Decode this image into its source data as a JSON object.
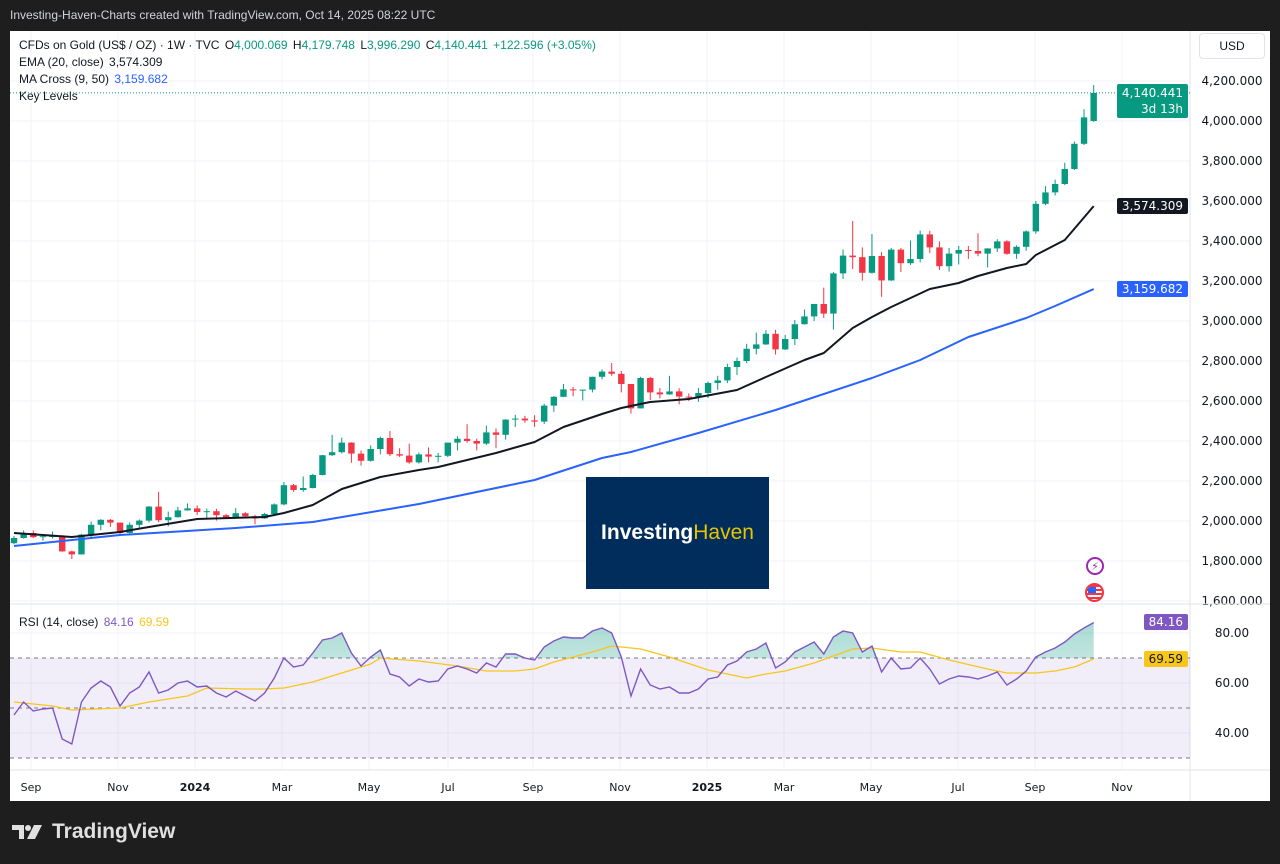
{
  "header": {
    "title": "Investing-Haven-Charts created with TradingView.com, Oct 14, 2025 08:22 UTC"
  },
  "legend": {
    "symbol": "CFDs on Gold (US$ / OZ) · 1W · TVC",
    "open_label": "O",
    "open": "4,000.069",
    "high_label": "H",
    "high": "4,179.748",
    "low_label": "L",
    "low": "3,996.290",
    "close_label": "C",
    "close": "4,140.441",
    "change": "+122.596 (+3.05%)",
    "ema_label": "EMA (20, close)",
    "ema_value": "3,574.309",
    "ma_label": "MA Cross (9, 50)",
    "ma_value": "3,159.682",
    "key_levels": "Key Levels",
    "rsi_label": "RSI (14, close)",
    "rsi_value": "84.16",
    "rsi_ma_value": "69.59"
  },
  "currency_button": "USD",
  "tags": {
    "price": "4,140.441",
    "countdown": "3d 13h",
    "ema": "3,574.309",
    "ma": "3,159.682",
    "rsi": "84.16",
    "rsi_ma": "69.59"
  },
  "watermark": {
    "part1": "Investing",
    "part2": "Haven"
  },
  "footer": {
    "brand": "TradingView"
  },
  "icons": [
    "lightning-icon",
    "us-flag-icon",
    "tradingview-logo-icon"
  ],
  "colors": {
    "up": "#089981",
    "down": "#f23645",
    "ema": "#131722",
    "ma": "#2962ff",
    "rsi": "#7e57c2",
    "rsi_ma": "#f7c61b",
    "logo_bg": "#002d5b"
  },
  "chart_data": {
    "type": "candlestick",
    "price_axis": {
      "ticks": [
        "4,200.000",
        "4,000.000",
        "3,800.000",
        "3,600.000",
        "3,400.000",
        "3,200.000",
        "3,000.000",
        "2,800.000",
        "2,600.000",
        "2,400.000",
        "2,200.000",
        "2,000.000",
        "1,800.000",
        "1,600.000"
      ],
      "range": [
        1600,
        4200
      ]
    },
    "rsi_axis": {
      "ticks": [
        "80.00",
        "60.00",
        "40.00"
      ],
      "levels": [
        70,
        50,
        30
      ]
    },
    "time_axis": [
      {
        "label": "Sep",
        "bold": false
      },
      {
        "label": "Nov",
        "bold": false
      },
      {
        "label": "2024",
        "bold": true
      },
      {
        "label": "Mar",
        "bold": false
      },
      {
        "label": "May",
        "bold": false
      },
      {
        "label": "Jul",
        "bold": false
      },
      {
        "label": "Sep",
        "bold": false
      },
      {
        "label": "Nov",
        "bold": false
      },
      {
        "label": "2025",
        "bold": true
      },
      {
        "label": "Mar",
        "bold": false
      },
      {
        "label": "May",
        "bold": false
      },
      {
        "label": "Jul",
        "bold": false
      },
      {
        "label": "Sep",
        "bold": false
      },
      {
        "label": "Nov",
        "bold": false
      }
    ],
    "candles_columns": [
      "date",
      "open",
      "high",
      "low",
      "close"
    ],
    "candles": [
      [
        "2023-08-21",
        1889,
        1925,
        1884,
        1915
      ],
      [
        "2023-08-28",
        1915,
        1953,
        1912,
        1940
      ],
      [
        "2023-09-04",
        1940,
        1953,
        1915,
        1919
      ],
      [
        "2023-09-11",
        1919,
        1933,
        1901,
        1924
      ],
      [
        "2023-09-18",
        1924,
        1947,
        1913,
        1925
      ],
      [
        "2023-09-25",
        1925,
        1929,
        1846,
        1848
      ],
      [
        "2023-10-02",
        1848,
        1852,
        1810,
        1833
      ],
      [
        "2023-10-09",
        1833,
        1936,
        1832,
        1932
      ],
      [
        "2023-10-16",
        1932,
        1997,
        1918,
        1981
      ],
      [
        "2023-10-23",
        1981,
        2009,
        1954,
        2006
      ],
      [
        "2023-10-30",
        2006,
        2010,
        1970,
        1992
      ],
      [
        "2023-11-06",
        1992,
        1993,
        1931,
        1940
      ],
      [
        "2023-11-13",
        1940,
        1993,
        1932,
        1981
      ],
      [
        "2023-11-20",
        1981,
        2008,
        1965,
        2002
      ],
      [
        "2023-11-27",
        2002,
        2075,
        1993,
        2072
      ],
      [
        "2023-12-04",
        2072,
        2146,
        1995,
        2004
      ],
      [
        "2023-12-11",
        2004,
        2047,
        1973,
        2019
      ],
      [
        "2023-12-18",
        2019,
        2071,
        2017,
        2053
      ],
      [
        "2023-12-25",
        2053,
        2088,
        2052,
        2063
      ],
      [
        "2024-01-01",
        2063,
        2078,
        2030,
        2045
      ],
      [
        "2024-01-08",
        2045,
        2062,
        2013,
        2049
      ],
      [
        "2024-01-15",
        2049,
        2061,
        2002,
        2029
      ],
      [
        "2024-01-22",
        2029,
        2036,
        2010,
        2018
      ],
      [
        "2024-01-29",
        2018,
        2065,
        2016,
        2039
      ],
      [
        "2024-02-05",
        2039,
        2044,
        2015,
        2024
      ],
      [
        "2024-02-12",
        2024,
        2031,
        1984,
        2013
      ],
      [
        "2024-02-19",
        2013,
        2041,
        2011,
        2035
      ],
      [
        "2024-02-26",
        2035,
        2088,
        2024,
        2083
      ],
      [
        "2024-03-04",
        2083,
        2195,
        2078,
        2179
      ],
      [
        "2024-03-11",
        2179,
        2185,
        2146,
        2155
      ],
      [
        "2024-03-18",
        2155,
        2223,
        2146,
        2165
      ],
      [
        "2024-03-25",
        2165,
        2236,
        2163,
        2230
      ],
      [
        "2024-04-01",
        2230,
        2330,
        2228,
        2329
      ],
      [
        "2024-04-08",
        2329,
        2431,
        2325,
        2344
      ],
      [
        "2024-04-15",
        2344,
        2417,
        2338,
        2392
      ],
      [
        "2024-04-22",
        2392,
        2394,
        2291,
        2337
      ],
      [
        "2024-04-29",
        2337,
        2353,
        2277,
        2301
      ],
      [
        "2024-05-06",
        2301,
        2378,
        2297,
        2360
      ],
      [
        "2024-05-13",
        2360,
        2422,
        2333,
        2415
      ],
      [
        "2024-05-20",
        2415,
        2450,
        2325,
        2334
      ],
      [
        "2024-05-27",
        2334,
        2364,
        2320,
        2327
      ],
      [
        "2024-06-03",
        2327,
        2387,
        2286,
        2293
      ],
      [
        "2024-06-10",
        2293,
        2342,
        2287,
        2333
      ],
      [
        "2024-06-17",
        2333,
        2368,
        2293,
        2322
      ],
      [
        "2024-06-24",
        2322,
        2340,
        2293,
        2326
      ],
      [
        "2024-07-01",
        2326,
        2392,
        2319,
        2392
      ],
      [
        "2024-07-08",
        2392,
        2424,
        2353,
        2411
      ],
      [
        "2024-07-15",
        2411,
        2484,
        2391,
        2400
      ],
      [
        "2024-07-22",
        2400,
        2412,
        2353,
        2387
      ],
      [
        "2024-07-29",
        2387,
        2477,
        2380,
        2443
      ],
      [
        "2024-08-05",
        2443,
        2463,
        2364,
        2431
      ],
      [
        "2024-08-12",
        2431,
        2509,
        2407,
        2507
      ],
      [
        "2024-08-19",
        2507,
        2531,
        2470,
        2512
      ],
      [
        "2024-08-26",
        2512,
        2526,
        2491,
        2503
      ],
      [
        "2024-09-02",
        2503,
        2529,
        2471,
        2497
      ],
      [
        "2024-09-09",
        2497,
        2586,
        2485,
        2577
      ],
      [
        "2024-09-16",
        2577,
        2625,
        2546,
        2621
      ],
      [
        "2024-09-23",
        2621,
        2685,
        2619,
        2658
      ],
      [
        "2024-09-30",
        2658,
        2670,
        2624,
        2653
      ],
      [
        "2024-10-07",
        2653,
        2656,
        2603,
        2657
      ],
      [
        "2024-10-14",
        2657,
        2722,
        2643,
        2721
      ],
      [
        "2024-10-21",
        2721,
        2758,
        2708,
        2747
      ],
      [
        "2024-10-28",
        2747,
        2790,
        2726,
        2736
      ],
      [
        "2024-11-04",
        2736,
        2750,
        2643,
        2685
      ],
      [
        "2024-11-11",
        2685,
        2685,
        2537,
        2563
      ],
      [
        "2024-11-18",
        2563,
        2721,
        2563,
        2715
      ],
      [
        "2024-11-25",
        2715,
        2721,
        2605,
        2643
      ],
      [
        "2024-12-02",
        2643,
        2665,
        2613,
        2633
      ],
      [
        "2024-12-09",
        2633,
        2726,
        2631,
        2648
      ],
      [
        "2024-12-16",
        2648,
        2664,
        2583,
        2622
      ],
      [
        "2024-12-23",
        2622,
        2638,
        2600,
        2621
      ],
      [
        "2024-12-30",
        2621,
        2665,
        2596,
        2640
      ],
      [
        "2025-01-06",
        2640,
        2697,
        2615,
        2690
      ],
      [
        "2025-01-13",
        2690,
        2726,
        2656,
        2703
      ],
      [
        "2025-01-20",
        2703,
        2786,
        2690,
        2770
      ],
      [
        "2025-01-27",
        2770,
        2817,
        2730,
        2800
      ],
      [
        "2025-02-03",
        2800,
        2886,
        2790,
        2861
      ],
      [
        "2025-02-10",
        2861,
        2942,
        2833,
        2883
      ],
      [
        "2025-02-17",
        2883,
        2954,
        2880,
        2936
      ],
      [
        "2025-02-24",
        2936,
        2956,
        2832,
        2858
      ],
      [
        "2025-03-03",
        2858,
        2930,
        2855,
        2910
      ],
      [
        "2025-03-10",
        2910,
        3005,
        2880,
        2984
      ],
      [
        "2025-03-17",
        2984,
        3057,
        2982,
        3023
      ],
      [
        "2025-03-24",
        3023,
        3086,
        3000,
        3085
      ],
      [
        "2025-03-31",
        3085,
        3167,
        3015,
        3037
      ],
      [
        "2025-04-07",
        3037,
        3245,
        2957,
        3238
      ],
      [
        "2025-04-14",
        3238,
        3358,
        3210,
        3327
      ],
      [
        "2025-04-21",
        3327,
        3500,
        3260,
        3319
      ],
      [
        "2025-04-28",
        3319,
        3368,
        3202,
        3241
      ],
      [
        "2025-05-05",
        3241,
        3435,
        3237,
        3325
      ],
      [
        "2025-05-12",
        3325,
        3345,
        3121,
        3203
      ],
      [
        "2025-05-19",
        3203,
        3365,
        3200,
        3357
      ],
      [
        "2025-05-26",
        3357,
        3365,
        3245,
        3289
      ],
      [
        "2025-06-02",
        3289,
        3403,
        3280,
        3310
      ],
      [
        "2025-06-09",
        3310,
        3452,
        3293,
        3433
      ],
      [
        "2025-06-16",
        3433,
        3451,
        3340,
        3368
      ],
      [
        "2025-06-23",
        3368,
        3398,
        3255,
        3274
      ],
      [
        "2025-06-30",
        3274,
        3365,
        3247,
        3337
      ],
      [
        "2025-07-07",
        3337,
        3375,
        3283,
        3355
      ],
      [
        "2025-07-14",
        3355,
        3375,
        3310,
        3350
      ],
      [
        "2025-07-21",
        3350,
        3439,
        3324,
        3337
      ],
      [
        "2025-07-28",
        3337,
        3363,
        3268,
        3363
      ],
      [
        "2025-08-04",
        3363,
        3409,
        3345,
        3398
      ],
      [
        "2025-08-11",
        3398,
        3404,
        3331,
        3336
      ],
      [
        "2025-08-18",
        3336,
        3379,
        3311,
        3371
      ],
      [
        "2025-08-25",
        3371,
        3453,
        3351,
        3448
      ],
      [
        "2025-09-01",
        3448,
        3600,
        3436,
        3586
      ],
      [
        "2025-09-08",
        3586,
        3674,
        3579,
        3643
      ],
      [
        "2025-09-15",
        3643,
        3707,
        3628,
        3685
      ],
      [
        "2025-09-22",
        3685,
        3791,
        3680,
        3760
      ],
      [
        "2025-09-29",
        3760,
        3897,
        3755,
        3886
      ],
      [
        "2025-10-06",
        3886,
        4059,
        3880,
        4018
      ],
      [
        "2025-10-13",
        4000.069,
        4179.748,
        3996.29,
        4140.441
      ]
    ],
    "ema20": [
      [
        "2023-08-21",
        1940
      ],
      [
        "2023-10-02",
        1920
      ],
      [
        "2023-10-16",
        1930
      ],
      [
        "2023-11-06",
        1945
      ],
      [
        "2023-11-27",
        1970
      ],
      [
        "2024-01-01",
        2010
      ],
      [
        "2024-02-19",
        2020
      ],
      [
        "2024-03-04",
        2040
      ],
      [
        "2024-03-25",
        2080
      ],
      [
        "2024-04-15",
        2160
      ],
      [
        "2024-05-13",
        2220
      ],
      [
        "2024-06-10",
        2255
      ],
      [
        "2024-06-24",
        2270
      ],
      [
        "2024-08-05",
        2340
      ],
      [
        "2024-09-02",
        2395
      ],
      [
        "2024-09-23",
        2470
      ],
      [
        "2024-10-21",
        2535
      ],
      [
        "2024-11-04",
        2565
      ],
      [
        "2024-11-25",
        2595
      ],
      [
        "2024-12-23",
        2610
      ],
      [
        "2025-01-27",
        2655
      ],
      [
        "2025-02-17",
        2720
      ],
      [
        "2025-03-17",
        2805
      ],
      [
        "2025-03-31",
        2840
      ],
      [
        "2025-04-21",
        2965
      ],
      [
        "2025-05-05",
        3020
      ],
      [
        "2025-05-19",
        3070
      ],
      [
        "2025-06-02",
        3115
      ],
      [
        "2025-06-16",
        3160
      ],
      [
        "2025-07-07",
        3190
      ],
      [
        "2025-07-21",
        3225
      ],
      [
        "2025-08-11",
        3265
      ],
      [
        "2025-08-25",
        3285
      ],
      [
        "2025-09-01",
        3330
      ],
      [
        "2025-09-22",
        3405
      ],
      [
        "2025-10-13",
        3574.309
      ]
    ],
    "ma50": [
      [
        "2023-08-21",
        1875
      ],
      [
        "2023-11-06",
        1930
      ],
      [
        "2024-01-29",
        1965
      ],
      [
        "2024-03-25",
        1995
      ],
      [
        "2024-06-10",
        2085
      ],
      [
        "2024-09-02",
        2205
      ],
      [
        "2024-10-21",
        2315
      ],
      [
        "2024-11-11",
        2345
      ],
      [
        "2024-12-30",
        2440
      ],
      [
        "2025-02-24",
        2555
      ],
      [
        "2025-05-05",
        2715
      ],
      [
        "2025-06-09",
        2805
      ],
      [
        "2025-07-14",
        2920
      ],
      [
        "2025-08-25",
        3015
      ],
      [
        "2025-09-15",
        3075
      ],
      [
        "2025-10-13",
        3159.682
      ]
    ],
    "rsi": [
      47.2,
      52.4,
      48.8,
      49.6,
      50,
      37.6,
      35.6,
      52.4,
      58,
      60.8,
      58.4,
      50.8,
      56,
      58.4,
      64.4,
      56,
      57.2,
      60,
      60.8,
      58.4,
      58.8,
      56,
      54.4,
      56.8,
      54.8,
      52.8,
      56,
      62,
      70,
      66.4,
      67.2,
      72,
      77.2,
      78,
      80,
      72,
      66.8,
      70.4,
      73.2,
      63.6,
      62.4,
      58.8,
      61.6,
      60.4,
      60.8,
      65.6,
      66.8,
      65.6,
      64,
      68,
      66.4,
      71.6,
      71.6,
      70,
      69.2,
      74.4,
      76.8,
      78.4,
      78,
      78,
      80.8,
      82,
      80,
      70.4,
      54.8,
      65.6,
      59.2,
      57.6,
      58.4,
      56,
      56,
      57.6,
      61.6,
      62.4,
      67.2,
      68.8,
      72.4,
      73.6,
      76,
      66,
      68.4,
      72.4,
      74.4,
      76.4,
      71.6,
      78.4,
      80.8,
      80,
      72.4,
      74.8,
      64.4,
      70,
      65.6,
      66,
      70,
      65.6,
      59.6,
      61.6,
      62.8,
      62.4,
      61.6,
      62.8,
      64.4,
      59.2,
      61.6,
      64.8,
      70.4,
      72.4,
      74,
      76.4,
      79.6,
      82,
      84.16
    ],
    "rsi_ma": [
      [
        "2023-08-21",
        52.4
      ],
      [
        "2023-09-18",
        50.8
      ],
      [
        "2023-10-02",
        49.2
      ],
      [
        "2023-11-06",
        50
      ],
      [
        "2023-11-27",
        52.4
      ],
      [
        "2023-12-25",
        54.8
      ],
      [
        "2024-01-08",
        58
      ],
      [
        "2024-02-05",
        57.6
      ],
      [
        "2024-02-19",
        57.6
      ],
      [
        "2024-03-04",
        58
      ],
      [
        "2024-03-25",
        60.4
      ],
      [
        "2024-04-22",
        65.2
      ],
      [
        "2024-05-06",
        67.6
      ],
      [
        "2024-05-13",
        70
      ],
      [
        "2024-06-10",
        68.8
      ],
      [
        "2024-07-08",
        66.8
      ],
      [
        "2024-07-29",
        64.8
      ],
      [
        "2024-08-19",
        64.8
      ],
      [
        "2024-09-02",
        65.6
      ],
      [
        "2024-09-16",
        68.4
      ],
      [
        "2024-10-14",
        72.4
      ],
      [
        "2024-10-28",
        74.8
      ],
      [
        "2024-11-18",
        73.6
      ],
      [
        "2024-12-09",
        70.4
      ],
      [
        "2025-01-06",
        65.2
      ],
      [
        "2025-02-03",
        62
      ],
      [
        "2025-02-17",
        63.6
      ],
      [
        "2025-03-03",
        64.8
      ],
      [
        "2025-03-24",
        68
      ],
      [
        "2025-04-21",
        73.6
      ],
      [
        "2025-05-05",
        74
      ],
      [
        "2025-05-26",
        72.4
      ],
      [
        "2025-06-09",
        72.4
      ],
      [
        "2025-06-30",
        69.2
      ],
      [
        "2025-07-28",
        65.6
      ],
      [
        "2025-08-11",
        64
      ],
      [
        "2025-09-01",
        64
      ],
      [
        "2025-09-15",
        64.8
      ],
      [
        "2025-09-29",
        66.4
      ],
      [
        "2025-10-13",
        69.59
      ]
    ]
  }
}
